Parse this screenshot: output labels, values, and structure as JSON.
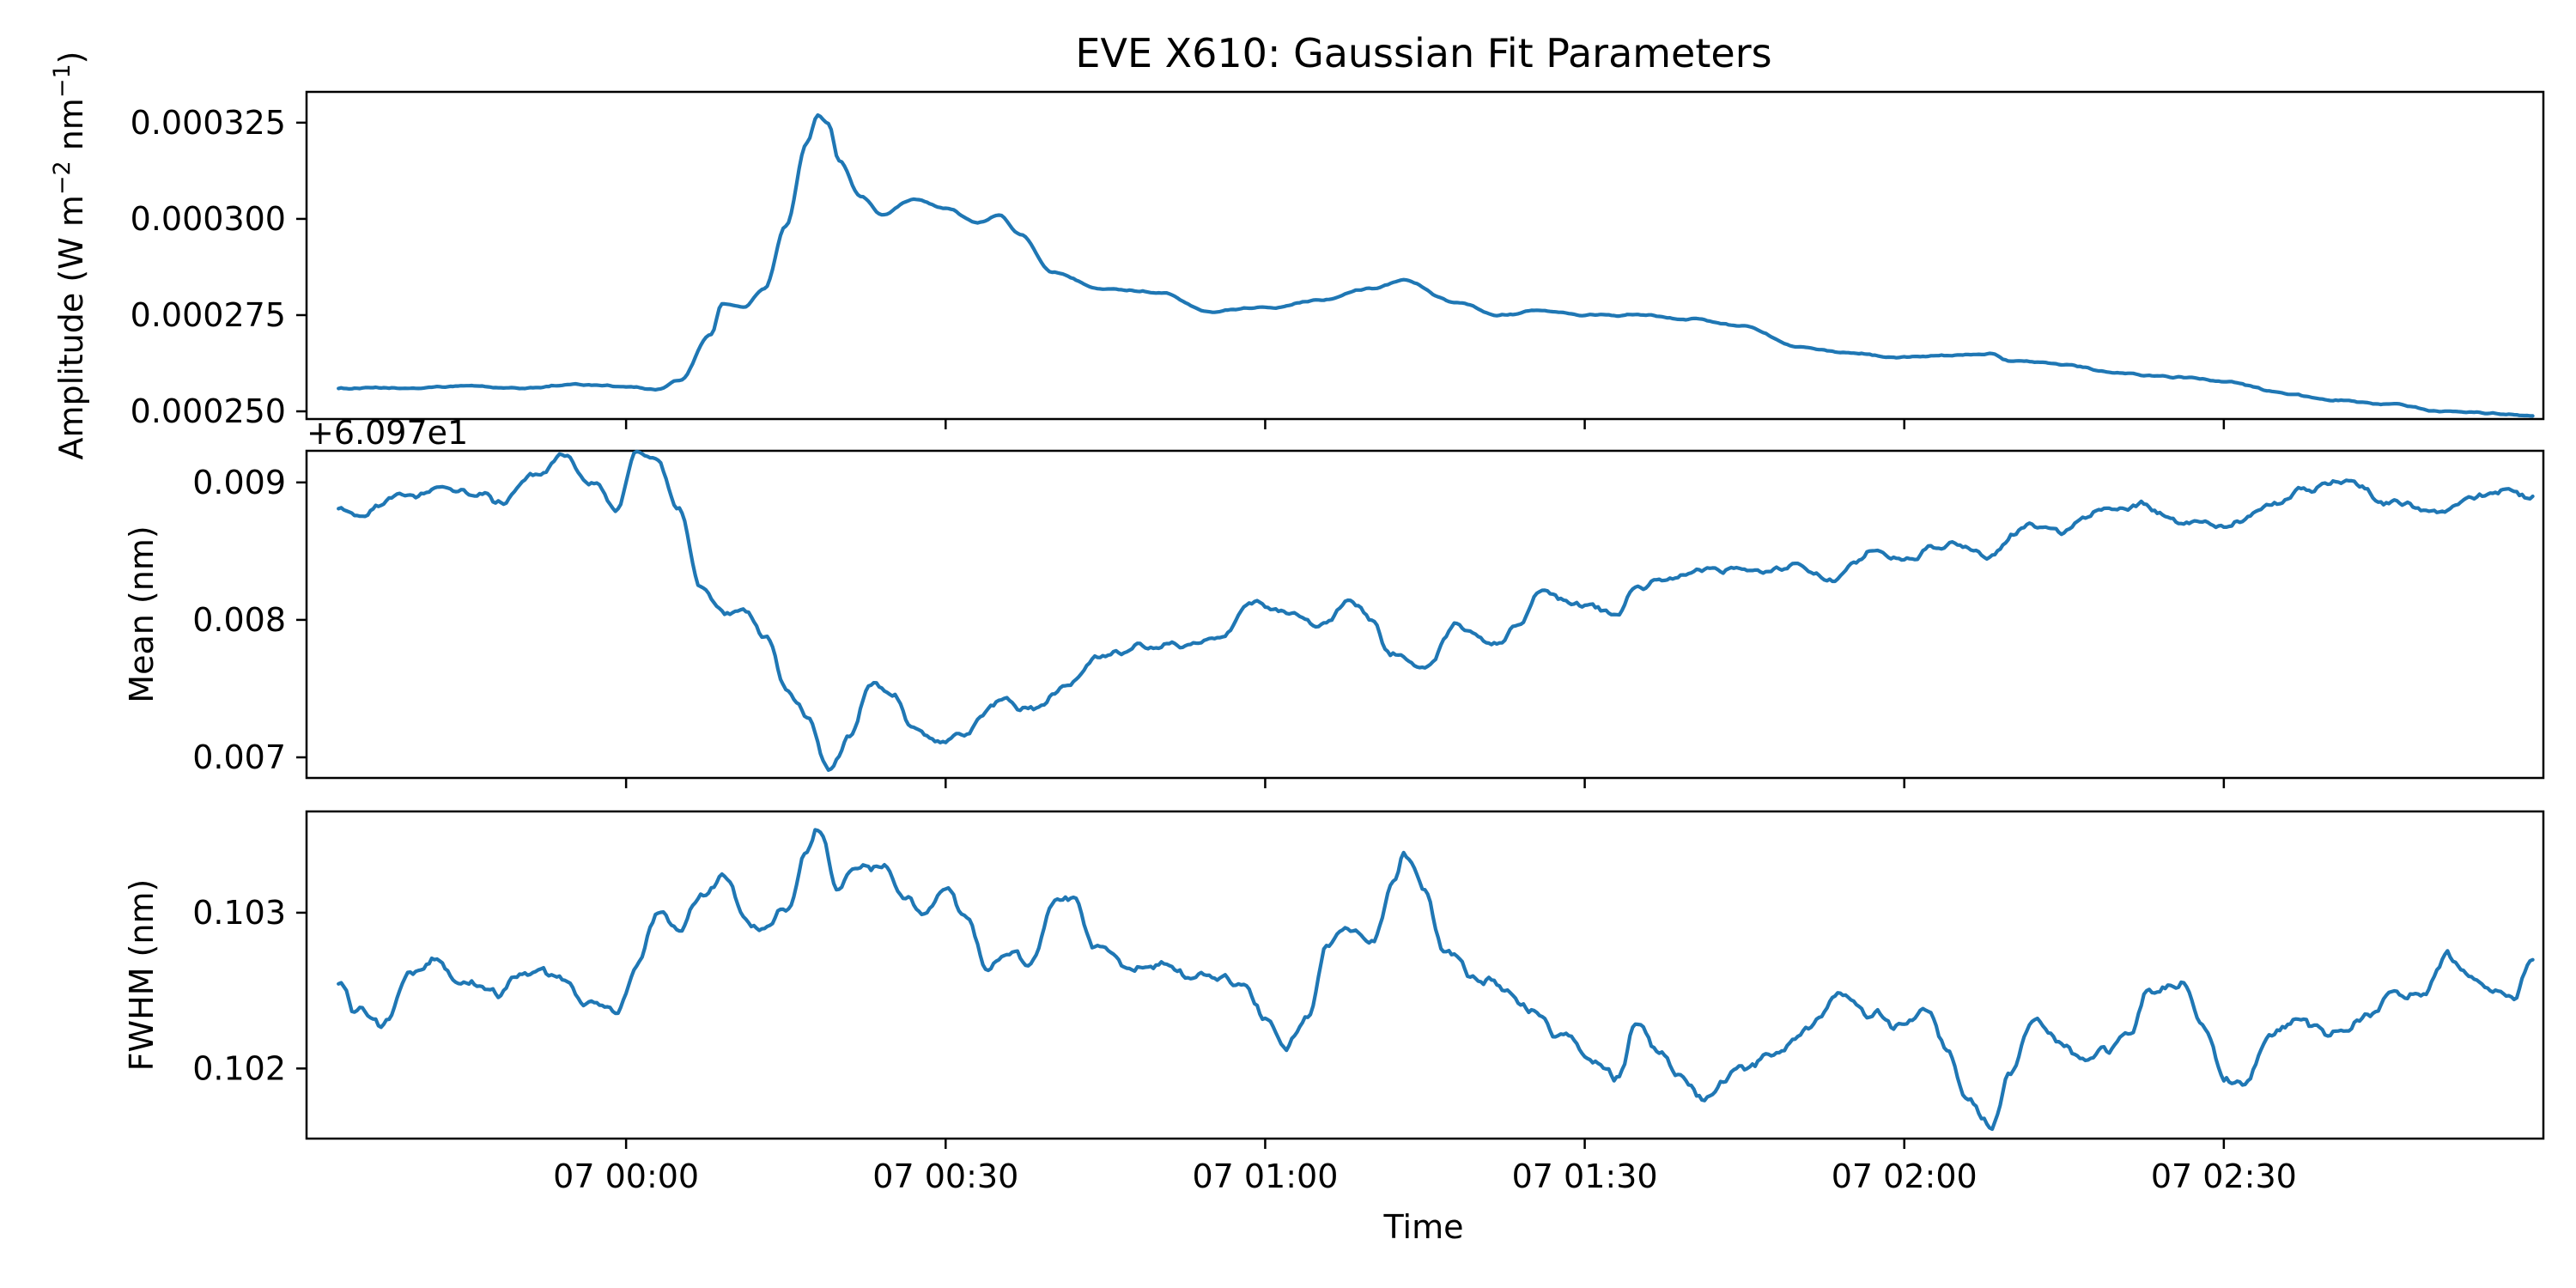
{
  "chart_data": {
    "type": "line",
    "title": "EVE X610: Gaussian Fit Parameters",
    "xlabel": "Time",
    "x_tick_labels": [
      "07 00:00",
      "07 00:30",
      "07 01:00",
      "07 01:30",
      "07 02:00",
      "07 02:30"
    ],
    "x_tick_minutes": [
      0,
      30,
      60,
      90,
      120,
      150
    ],
    "xlim_minutes": [
      -30,
      180
    ],
    "x_start_minutes": -27,
    "x_end_minutes": 179,
    "panels": [
      {
        "ylabel": "Amplitude (W m",
        "ylabel_exp1": "−2",
        "ylabel_mid": " nm",
        "ylabel_exp2": "−1",
        "ylabel_end": ")",
        "offset_text": "",
        "ylim": [
          0.000248,
          0.000333
        ],
        "yticks": [
          0.00025,
          0.000275,
          0.0003,
          0.000325
        ],
        "ytick_labels": [
          "0.000250",
          "0.000275",
          "0.000300",
          "0.000325"
        ],
        "series": [
          {
            "noise": 3e-07,
            "anchors": [
              [
                -27,
                0.000256
              ],
              [
                -20,
                0.000256
              ],
              [
                -15,
                0.0002565
              ],
              [
                -10,
                0.000256
              ],
              [
                -5,
                0.000257
              ],
              [
                0,
                0.0002565
              ],
              [
                3,
                0.0002555
              ],
              [
                5,
                0.000258
              ],
              [
                8,
                0.00027
              ],
              [
                9,
                0.000278
              ],
              [
                11,
                0.000277
              ],
              [
                13,
                0.000282
              ],
              [
                15,
                0.000298
              ],
              [
                17,
                0.00032
              ],
              [
                18,
                0.000327
              ],
              [
                19,
                0.000325
              ],
              [
                20,
                0.000315
              ],
              [
                22,
                0.000306
              ],
              [
                24,
                0.000301
              ],
              [
                27,
                0.000305
              ],
              [
                30,
                0.000303
              ],
              [
                33,
                0.000299
              ],
              [
                35,
                0.000301
              ],
              [
                37,
                0.000296
              ],
              [
                40,
                0.000286
              ],
              [
                45,
                0.000282
              ],
              [
                50,
                0.000281
              ],
              [
                55,
                0.000276
              ],
              [
                60,
                0.000277
              ],
              [
                65,
                0.000279
              ],
              [
                70,
                0.000282
              ],
              [
                73,
                0.000284
              ],
              [
                78,
                0.000278
              ],
              [
                82,
                0.000275
              ],
              [
                86,
                0.000276
              ],
              [
                90,
                0.000275
              ],
              [
                95,
                0.000275
              ],
              [
                100,
                0.000274
              ],
              [
                105,
                0.000272
              ],
              [
                110,
                0.000267
              ],
              [
                115,
                0.000265
              ],
              [
                120,
                0.000264
              ],
              [
                125,
                0.0002645
              ],
              [
                128,
                0.000265
              ],
              [
                130,
                0.000263
              ],
              [
                135,
                0.000262
              ],
              [
                140,
                0.00026
              ],
              [
                145,
                0.000259
              ],
              [
                150,
                0.000258
              ],
              [
                155,
                0.000255
              ],
              [
                160,
                0.000253
              ],
              [
                165,
                0.000252
              ],
              [
                170,
                0.00025
              ],
              [
                175,
                0.0002495
              ],
              [
                179,
                0.000249
              ]
            ]
          }
        ]
      },
      {
        "ylabel": "Mean (nm)",
        "offset_text": "+6.097e1",
        "ylim": [
          0.00685,
          0.00923
        ],
        "yticks": [
          0.007,
          0.008,
          0.009
        ],
        "ytick_labels": [
          "0.007",
          "0.008",
          "0.009"
        ],
        "series": [
          {
            "noise": 4e-05,
            "anchors": [
              [
                -27,
                0.0088
              ],
              [
                -25,
                0.00875
              ],
              [
                -22,
                0.00885
              ],
              [
                -18,
                0.00895
              ],
              [
                -14,
                0.0089
              ],
              [
                -12,
                0.00885
              ],
              [
                -8,
                0.00905
              ],
              [
                -6,
                0.0092
              ],
              [
                -3,
                0.009
              ],
              [
                -1,
                0.0088
              ],
              [
                1,
                0.00922
              ],
              [
                3,
                0.00915
              ],
              [
                5,
                0.0088
              ],
              [
                7,
                0.0082
              ],
              [
                9,
                0.00805
              ],
              [
                11,
                0.0081
              ],
              [
                13,
                0.0079
              ],
              [
                15,
                0.0075
              ],
              [
                17,
                0.0073
              ],
              [
                19,
                0.0069
              ],
              [
                21,
                0.00715
              ],
              [
                23,
                0.00755
              ],
              [
                25,
                0.00745
              ],
              [
                27,
                0.0072
              ],
              [
                29,
                0.0071
              ],
              [
                32,
                0.0072
              ],
              [
                35,
                0.0074
              ],
              [
                38,
                0.00735
              ],
              [
                41,
                0.0075
              ],
              [
                44,
                0.0077
              ],
              [
                48,
                0.0078
              ],
              [
                52,
                0.0078
              ],
              [
                56,
                0.0079
              ],
              [
                59,
                0.00815
              ],
              [
                62,
                0.00805
              ],
              [
                65,
                0.00795
              ],
              [
                68,
                0.00815
              ],
              [
                70,
                0.008
              ],
              [
                72,
                0.00775
              ],
              [
                75,
                0.00765
              ],
              [
                78,
                0.00795
              ],
              [
                82,
                0.00785
              ],
              [
                84,
                0.008
              ],
              [
                86,
                0.0082
              ],
              [
                90,
                0.0081
              ],
              [
                93,
                0.00805
              ],
              [
                95,
                0.00825
              ],
              [
                98,
                0.0083
              ],
              [
                102,
                0.00835
              ],
              [
                106,
                0.00835
              ],
              [
                110,
                0.0084
              ],
              [
                113,
                0.0083
              ],
              [
                117,
                0.0085
              ],
              [
                120,
                0.00845
              ],
              [
                124,
                0.00855
              ],
              [
                128,
                0.00845
              ],
              [
                132,
                0.0087
              ],
              [
                135,
                0.00865
              ],
              [
                138,
                0.0088
              ],
              [
                142,
                0.00885
              ],
              [
                146,
                0.0087
              ],
              [
                150,
                0.0087
              ],
              [
                154,
                0.0088
              ],
              [
                158,
                0.00895
              ],
              [
                162,
                0.009
              ],
              [
                165,
                0.00885
              ],
              [
                170,
                0.0088
              ],
              [
                174,
                0.0089
              ],
              [
                177,
                0.00895
              ],
              [
                179,
                0.0089
              ]
            ]
          }
        ]
      },
      {
        "ylabel": "FWHM (nm)",
        "offset_text": "",
        "ylim": [
          0.10155,
          0.10365
        ],
        "yticks": [
          0.102,
          0.103
        ],
        "ytick_labels": [
          "0.102",
          "0.103"
        ],
        "series": [
          {
            "noise": 5e-05,
            "anchors": [
              [
                -27,
                0.10255
              ],
              [
                -25,
                0.10235
              ],
              [
                -23,
                0.10225
              ],
              [
                -20,
                0.1026
              ],
              [
                -18,
                0.1027
              ],
              [
                -15,
                0.10255
              ],
              [
                -12,
                0.1025
              ],
              [
                -9,
                0.10265
              ],
              [
                -6,
                0.1026
              ],
              [
                -4,
                0.10245
              ],
              [
                -1,
                0.10235
              ],
              [
                1,
                0.1027
              ],
              [
                3,
                0.103
              ],
              [
                5,
                0.10285
              ],
              [
                7,
                0.1031
              ],
              [
                9,
                0.10325
              ],
              [
                11,
                0.103
              ],
              [
                13,
                0.1029
              ],
              [
                15,
                0.103
              ],
              [
                17,
                0.1034
              ],
              [
                18,
                0.10355
              ],
              [
                20,
                0.1032
              ],
              [
                22,
                0.1033
              ],
              [
                24,
                0.1033
              ],
              [
                26,
                0.1031
              ],
              [
                28,
                0.103
              ],
              [
                30,
                0.10315
              ],
              [
                32,
                0.10295
              ],
              [
                34,
                0.10265
              ],
              [
                36,
                0.1027
              ],
              [
                38,
                0.10265
              ],
              [
                40,
                0.10305
              ],
              [
                42,
                0.1031
              ],
              [
                44,
                0.10275
              ],
              [
                47,
                0.10265
              ],
              [
                50,
                0.1027
              ],
              [
                53,
                0.1026
              ],
              [
                56,
                0.10255
              ],
              [
                58,
                0.1025
              ],
              [
                60,
                0.10235
              ],
              [
                62,
                0.1021
              ],
              [
                64,
                0.1023
              ],
              [
                66,
                0.1028
              ],
              [
                68,
                0.1029
              ],
              [
                70,
                0.1028
              ],
              [
                72,
                0.1032
              ],
              [
                73,
                0.10335
              ],
              [
                75,
                0.1031
              ],
              [
                77,
                0.1027
              ],
              [
                80,
                0.1026
              ],
              [
                83,
                0.1025
              ],
              [
                85,
                0.10235
              ],
              [
                88,
                0.1022
              ],
              [
                91,
                0.10205
              ],
              [
                93,
                0.10195
              ],
              [
                95,
                0.1023
              ],
              [
                97,
                0.1021
              ],
              [
                99,
                0.10195
              ],
              [
                101,
                0.1018
              ],
              [
                103,
                0.1019
              ],
              [
                105,
                0.102
              ],
              [
                108,
                0.1021
              ],
              [
                111,
                0.1023
              ],
              [
                114,
                0.10245
              ],
              [
                117,
                0.10235
              ],
              [
                119,
                0.10225
              ],
              [
                122,
                0.10235
              ],
              [
                124,
                0.10215
              ],
              [
                126,
                0.1018
              ],
              [
                128,
                0.10165
              ],
              [
                130,
                0.102
              ],
              [
                132,
                0.1023
              ],
              [
                135,
                0.10215
              ],
              [
                137,
                0.10205
              ],
              [
                139,
                0.1021
              ],
              [
                141,
                0.1022
              ],
              [
                143,
                0.1025
              ],
              [
                146,
                0.10255
              ],
              [
                148,
                0.1023
              ],
              [
                150,
                0.10195
              ],
              [
                152,
                0.10185
              ],
              [
                154,
                0.1022
              ],
              [
                157,
                0.1023
              ],
              [
                160,
                0.1022
              ],
              [
                163,
                0.1023
              ],
              [
                166,
                0.10245
              ],
              [
                169,
                0.1025
              ],
              [
                171,
                0.1027
              ],
              [
                173,
                0.1026
              ],
              [
                175,
                0.1025
              ],
              [
                177,
                0.10245
              ],
              [
                179,
                0.1027
              ]
            ]
          }
        ]
      }
    ]
  }
}
